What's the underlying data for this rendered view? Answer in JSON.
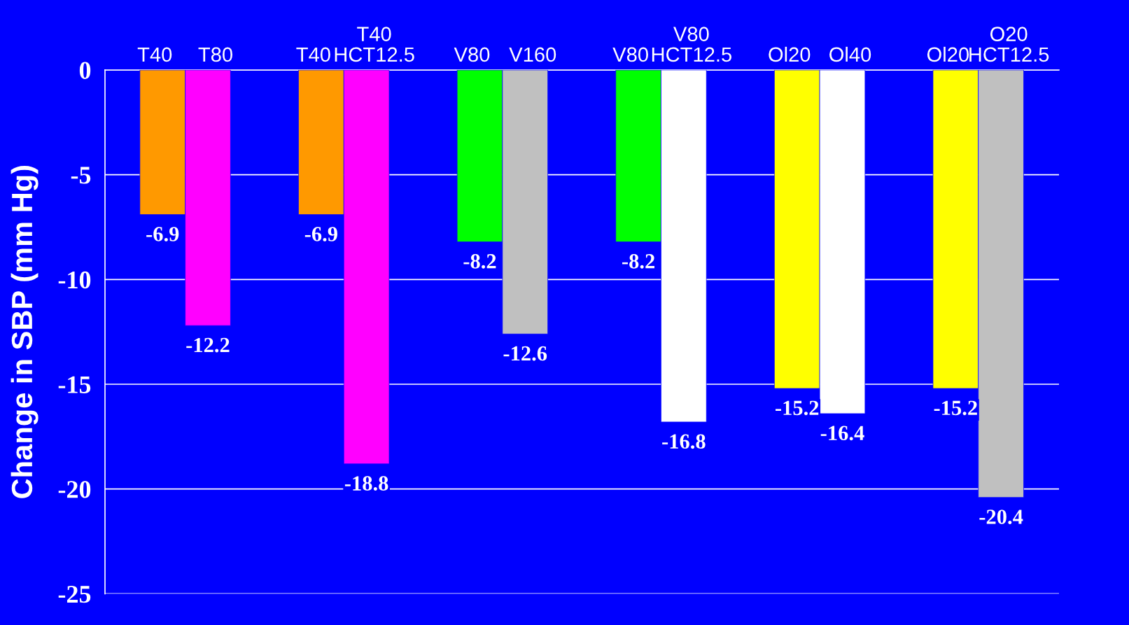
{
  "chart_data": {
    "type": "bar",
    "ylabel": "Change in SBP (mm Hg)",
    "categories": [
      "T40",
      "T80",
      "T40",
      "T40\nHCT12.5",
      "V80",
      "V160",
      "V80",
      "V80\nHCT12.5",
      "Ol20",
      "Ol40",
      "Ol20",
      "O20\nHCT12.5"
    ],
    "values": [
      -6.9,
      -12.2,
      -6.9,
      -18.8,
      -8.2,
      -12.6,
      -8.2,
      -16.8,
      -15.2,
      -16.4,
      -15.2,
      -20.4
    ],
    "colors": [
      "#ff9900",
      "#ff00ff",
      "#ff9900",
      "#ff00ff",
      "#00ff00",
      "#c0c0c0",
      "#00ff00",
      "#ffffff",
      "#ffff00",
      "#ffffff",
      "#ffff00",
      "#c0c0c0"
    ],
    "ylim": [
      -25,
      0
    ],
    "yticks": [
      0,
      -5,
      -10,
      -15,
      -20,
      -25
    ],
    "grid": "y",
    "data_labels": true
  }
}
